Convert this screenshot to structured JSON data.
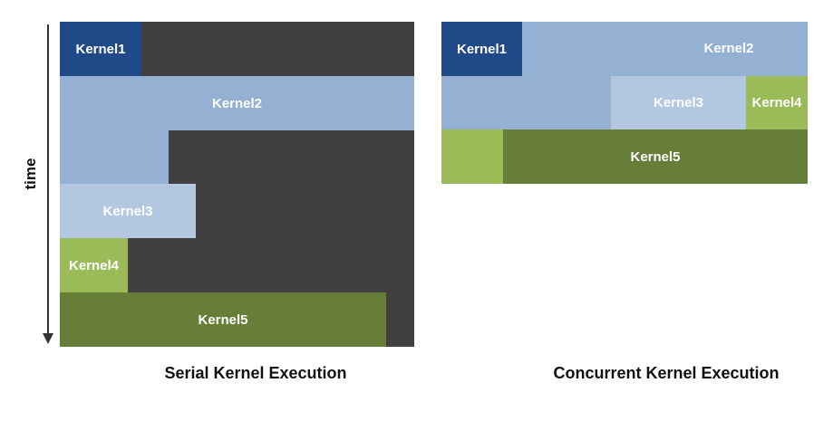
{
  "axis": {
    "time_label": "time"
  },
  "serial": {
    "caption": "Serial Kernel Execution",
    "background_color": "#404040",
    "kernels": {
      "k1": {
        "label": "Kernel1",
        "color": "#1f4a87"
      },
      "k2": {
        "label": "Kernel2",
        "color": "#94b0d2"
      },
      "k3": {
        "label": "Kernel3",
        "color": "#b4c7e0"
      },
      "k4": {
        "label": "Kernel4",
        "color": "#9bbb59"
      },
      "k5": {
        "label": "Kernel5",
        "color": "#677e38"
      }
    }
  },
  "concurrent": {
    "caption": "Concurrent Kernel Execution",
    "kernels": {
      "k1": {
        "label": "Kernel1",
        "color": "#1f4a87"
      },
      "k2": {
        "label": "Kernel2",
        "color": "#94b0d2"
      },
      "k3": {
        "label": "Kernel3",
        "color": "#b4c7e0"
      },
      "k4": {
        "label": "Kernel4",
        "color": "#9bbb59"
      },
      "k5": {
        "label": "Kernel5",
        "color": "#677e38"
      }
    }
  }
}
